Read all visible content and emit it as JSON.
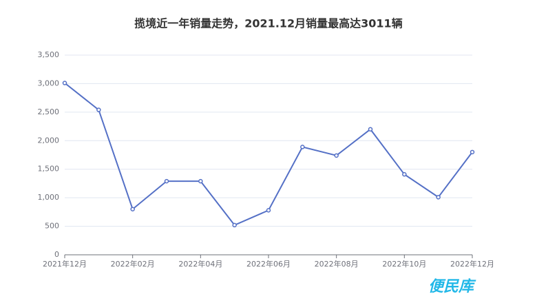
{
  "chart_data": {
    "type": "line",
    "title": "揽境近一年销量走势，2021.12月销量最高达3011辆",
    "categories": [
      "2021年12月",
      null,
      "2022年02月",
      null,
      "2022年04月",
      null,
      "2022年06月",
      null,
      "2022年08月",
      null,
      "2022年10月",
      null,
      "2022年12月"
    ],
    "values": [
      3011,
      2540,
      800,
      1290,
      1290,
      520,
      780,
      1890,
      1740,
      2200,
      1410,
      1010,
      1800
    ],
    "color": "#5470c6",
    "ylim": [
      0,
      3500
    ],
    "yticks": [
      0,
      500,
      {
        "value": 1000,
        "label": "1,000"
      },
      {
        "value": 1500,
        "label": "1,500"
      },
      {
        "value": 2000,
        "label": "2,000"
      },
      {
        "value": 2500,
        "label": "2,500"
      },
      {
        "value": 3000,
        "label": "3,000"
      },
      {
        "value": 3500,
        "label": "3,500"
      }
    ],
    "grid": true,
    "watermark": "便民库"
  }
}
